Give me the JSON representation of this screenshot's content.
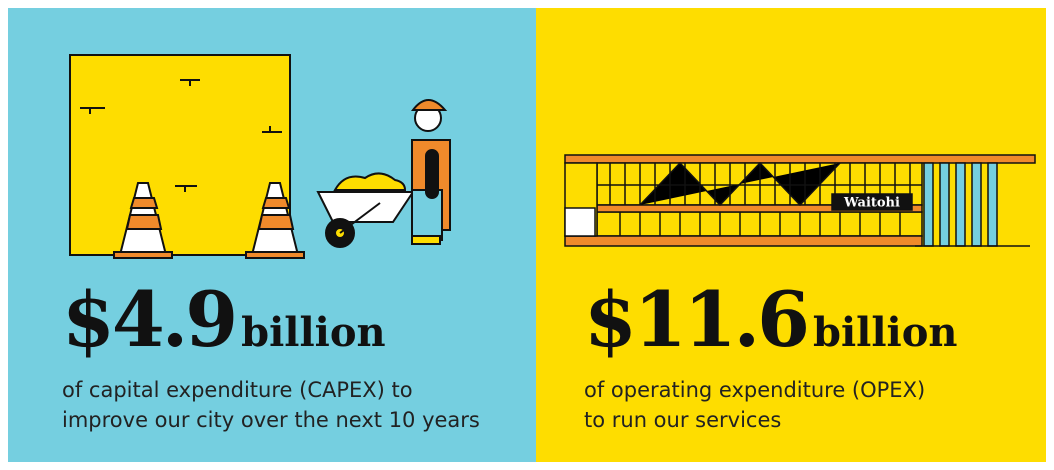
{
  "panels": [
    {
      "amount": "$4.9",
      "unit": "billion",
      "description": [
        "of capital expenditure (CAPEX) to",
        "improve our city over the next 10 years"
      ]
    },
    {
      "amount": "$11.6",
      "unit": "billion",
      "description": [
        "of operating expenditure (OPEX)",
        "to run our services"
      ],
      "sign": "Waitohi"
    }
  ]
}
